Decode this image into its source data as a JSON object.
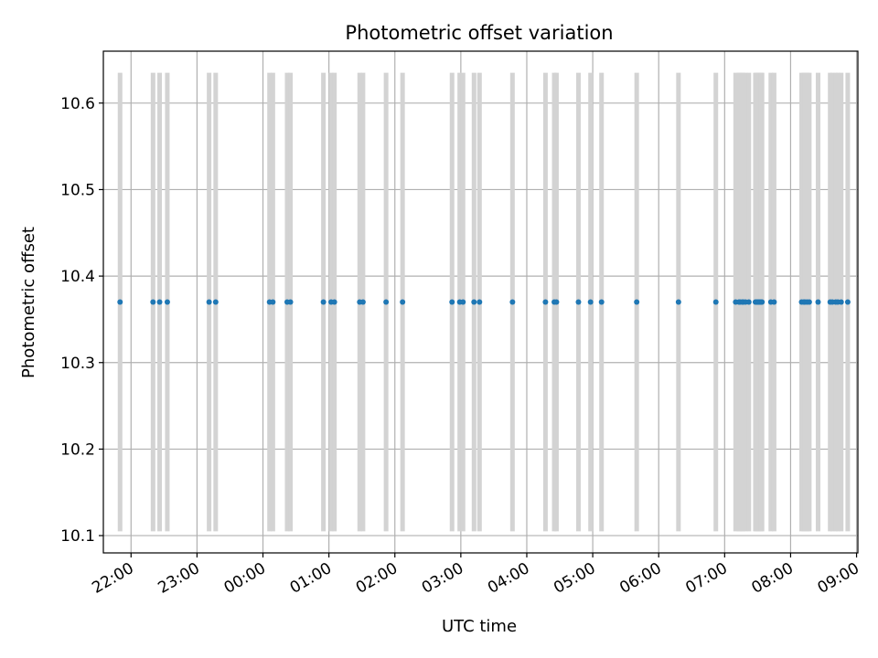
{
  "chart_data": {
    "type": "scatter",
    "title": "Photometric offset variation",
    "xlabel": "UTC time",
    "ylabel": "Photometric offset",
    "x_axis": "time",
    "x_start": "21:35",
    "xlim_hours": [
      21.58,
      33.02
    ],
    "ylim": [
      10.08,
      10.66
    ],
    "y_ticks": [
      10.1,
      10.2,
      10.3,
      10.4,
      10.5,
      10.6
    ],
    "x_ticks": [
      "22:00",
      "23:00",
      "00:00",
      "01:00",
      "02:00",
      "03:00",
      "04:00",
      "05:00",
      "06:00",
      "07:00",
      "08:00",
      "09:00"
    ],
    "grid": true,
    "error_band": [
      10.105,
      10.635
    ],
    "series": [
      {
        "values_y": 10.37,
        "times": [
          "21:50",
          "22:20",
          "22:26",
          "22:33",
          "23:11",
          "23:17",
          "00:06",
          "00:09",
          "00:22",
          "00:25",
          "00:55",
          "01:02",
          "01:05",
          "01:28",
          "01:31",
          "01:52",
          "02:07",
          "02:52",
          "02:59",
          "03:02",
          "03:12",
          "03:17",
          "03:47",
          "04:17",
          "04:25",
          "04:27",
          "04:47",
          "04:58",
          "05:08",
          "05:40",
          "06:18",
          "06:52",
          "07:10",
          "07:13",
          "07:14",
          "07:16",
          "07:17",
          "07:19",
          "07:22",
          "07:28",
          "07:29",
          "07:30",
          "07:31",
          "07:32",
          "07:33",
          "07:34",
          "07:42",
          "07:45",
          "08:10",
          "08:12",
          "08:13",
          "08:15",
          "08:17",
          "08:25",
          "08:36",
          "08:38",
          "08:41",
          "08:43",
          "08:46",
          "08:52"
        ]
      }
    ],
    "colors": {
      "points": "#1f77b4",
      "bands": "#d3d3d3",
      "grid": "#b0b0b0"
    }
  }
}
